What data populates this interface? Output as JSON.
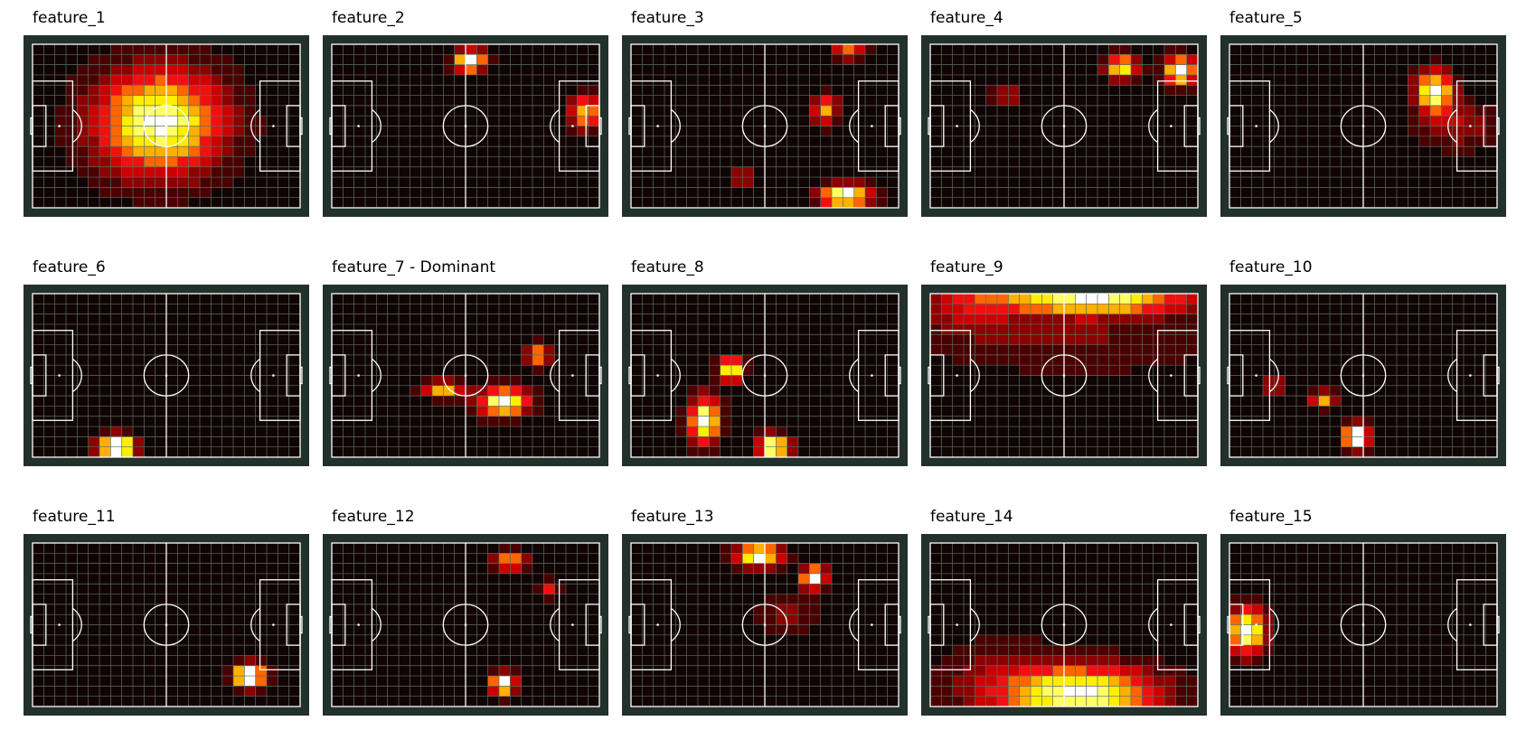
{
  "figure": {
    "pitch_colors": {
      "background": "#22312b",
      "lines": "#ffffff",
      "grid": "#5c6e66",
      "empty": "#110404"
    },
    "colormap": [
      "#110404",
      "#4a0000",
      "#8c0000",
      "#cc0000",
      "#f01010",
      "#ff6600",
      "#ffb000",
      "#ffee00",
      "#ffff66",
      "#ffffff"
    ]
  },
  "chart_data": [
    {
      "type": "heatmap",
      "title": "feature_1",
      "bins": [
        24,
        16
      ],
      "x_range": [
        0,
        120
      ],
      "y_range": [
        0,
        80
      ],
      "hotspots": [
        {
          "x": 57,
          "y": 42,
          "sx": 20,
          "sy": 18,
          "w": 1.0
        }
      ]
    },
    {
      "type": "heatmap",
      "title": "feature_2",
      "bins": [
        24,
        16
      ],
      "x_range": [
        0,
        120
      ],
      "y_range": [
        0,
        80
      ],
      "hotspots": [
        {
          "x": 62,
          "y": 72,
          "sx": 5,
          "sy": 4,
          "w": 1.0
        },
        {
          "x": 114,
          "y": 47,
          "sx": 5,
          "sy": 6,
          "w": 0.75
        }
      ]
    },
    {
      "type": "heatmap",
      "title": "feature_3",
      "bins": [
        24,
        16
      ],
      "x_range": [
        0,
        120
      ],
      "y_range": [
        0,
        80
      ],
      "hotspots": [
        {
          "x": 96,
          "y": 6,
          "sx": 8,
          "sy": 4,
          "w": 1.0
        },
        {
          "x": 87,
          "y": 48,
          "sx": 4,
          "sy": 5,
          "w": 0.65
        },
        {
          "x": 50,
          "y": 15,
          "sx": 4,
          "sy": 3,
          "w": 0.45
        },
        {
          "x": 98,
          "y": 77,
          "sx": 5,
          "sy": 3,
          "w": 0.55
        }
      ]
    },
    {
      "type": "heatmap",
      "title": "feature_4",
      "bins": [
        24,
        16
      ],
      "x_range": [
        0,
        120
      ],
      "y_range": [
        0,
        80
      ],
      "hotspots": [
        {
          "x": 112,
          "y": 67,
          "sx": 5,
          "sy": 5,
          "w": 1.0
        },
        {
          "x": 86,
          "y": 69,
          "sx": 5,
          "sy": 4,
          "w": 0.9
        },
        {
          "x": 33,
          "y": 55,
          "sx": 5,
          "sy": 3,
          "w": 0.4
        }
      ]
    },
    {
      "type": "heatmap",
      "title": "feature_5",
      "bins": [
        24,
        16
      ],
      "x_range": [
        0,
        120
      ],
      "y_range": [
        0,
        80
      ],
      "hotspots": [
        {
          "x": 92,
          "y": 57,
          "sx": 6,
          "sy": 7,
          "w": 1.0
        },
        {
          "x": 102,
          "y": 40,
          "sx": 12,
          "sy": 8,
          "w": 0.3
        }
      ]
    },
    {
      "type": "heatmap",
      "title": "feature_6",
      "bins": [
        24,
        16
      ],
      "x_range": [
        0,
        120
      ],
      "y_range": [
        0,
        80
      ],
      "hotspots": [
        {
          "x": 38,
          "y": 5,
          "sx": 6,
          "sy": 4,
          "w": 1.0
        }
      ]
    },
    {
      "type": "heatmap",
      "title": "feature_7 - Dominant",
      "bins": [
        24,
        16
      ],
      "x_range": [
        0,
        120
      ],
      "y_range": [
        0,
        80
      ],
      "hotspots": [
        {
          "x": 77,
          "y": 27,
          "sx": 8,
          "sy": 5,
          "w": 1.0
        },
        {
          "x": 50,
          "y": 33,
          "sx": 6,
          "sy": 3,
          "w": 0.7
        },
        {
          "x": 92,
          "y": 50,
          "sx": 4,
          "sy": 4,
          "w": 0.65
        }
      ]
    },
    {
      "type": "heatmap",
      "title": "feature_8",
      "bins": [
        24,
        16
      ],
      "x_range": [
        0,
        120
      ],
      "y_range": [
        0,
        80
      ],
      "hotspots": [
        {
          "x": 33,
          "y": 18,
          "sx": 5,
          "sy": 8,
          "w": 0.9
        },
        {
          "x": 45,
          "y": 43,
          "sx": 4,
          "sy": 4,
          "w": 0.85
        },
        {
          "x": 64,
          "y": 5,
          "sx": 5,
          "sy": 4,
          "w": 1.0
        }
      ]
    },
    {
      "type": "heatmap",
      "title": "feature_9",
      "bins": [
        24,
        16
      ],
      "x_range": [
        0,
        120
      ],
      "y_range": [
        0,
        80
      ],
      "hotspots": [
        {
          "x": 72,
          "y": 77,
          "sx": 30,
          "sy": 5,
          "w": 1.0
        },
        {
          "x": 18,
          "y": 74,
          "sx": 14,
          "sy": 10,
          "w": 0.3
        },
        {
          "x": 65,
          "y": 58,
          "sx": 45,
          "sy": 12,
          "w": 0.2
        }
      ]
    },
    {
      "type": "heatmap",
      "title": "feature_10",
      "bins": [
        24,
        16
      ],
      "x_range": [
        0,
        120
      ],
      "y_range": [
        0,
        80
      ],
      "hotspots": [
        {
          "x": 57,
          "y": 10,
          "sx": 4,
          "sy": 4,
          "w": 1.0
        },
        {
          "x": 42,
          "y": 28,
          "sx": 4,
          "sy": 3,
          "w": 0.55
        },
        {
          "x": 20,
          "y": 35,
          "sx": 4,
          "sy": 3,
          "w": 0.4
        }
      ]
    },
    {
      "type": "heatmap",
      "title": "feature_11",
      "bins": [
        24,
        16
      ],
      "x_range": [
        0,
        120
      ],
      "y_range": [
        0,
        80
      ],
      "hotspots": [
        {
          "x": 97,
          "y": 15,
          "sx": 5,
          "sy": 4,
          "w": 1.0
        }
      ]
    },
    {
      "type": "heatmap",
      "title": "feature_12",
      "bins": [
        24,
        16
      ],
      "x_range": [
        0,
        120
      ],
      "y_range": [
        0,
        80
      ],
      "hotspots": [
        {
          "x": 77,
          "y": 11,
          "sx": 4,
          "sy": 4,
          "w": 1.0
        },
        {
          "x": 80,
          "y": 71,
          "sx": 5,
          "sy": 4,
          "w": 0.6
        },
        {
          "x": 97,
          "y": 57,
          "sx": 3,
          "sy": 3,
          "w": 0.45
        }
      ]
    },
    {
      "type": "heatmap",
      "title": "feature_13",
      "bins": [
        24,
        16
      ],
      "x_range": [
        0,
        120
      ],
      "y_range": [
        0,
        80
      ],
      "hotspots": [
        {
          "x": 57,
          "y": 74,
          "sx": 7,
          "sy": 4,
          "w": 1.0
        },
        {
          "x": 82,
          "y": 63,
          "sx": 4,
          "sy": 4,
          "w": 0.95
        },
        {
          "x": 70,
          "y": 45,
          "sx": 12,
          "sy": 6,
          "w": 0.2
        }
      ]
    },
    {
      "type": "heatmap",
      "title": "feature_14",
      "bins": [
        24,
        16
      ],
      "x_range": [
        0,
        120
      ],
      "y_range": [
        0,
        80
      ],
      "hotspots": [
        {
          "x": 68,
          "y": 6,
          "sx": 24,
          "sy": 10,
          "w": 1.0
        },
        {
          "x": 30,
          "y": 12,
          "sx": 20,
          "sy": 15,
          "w": 0.2
        }
      ]
    },
    {
      "type": "heatmap",
      "title": "feature_15",
      "bins": [
        24,
        16
      ],
      "x_range": [
        0,
        120
      ],
      "y_range": [
        0,
        80
      ],
      "hotspots": [
        {
          "x": 8,
          "y": 37,
          "sx": 6,
          "sy": 8,
          "w": 1.0
        }
      ]
    }
  ]
}
